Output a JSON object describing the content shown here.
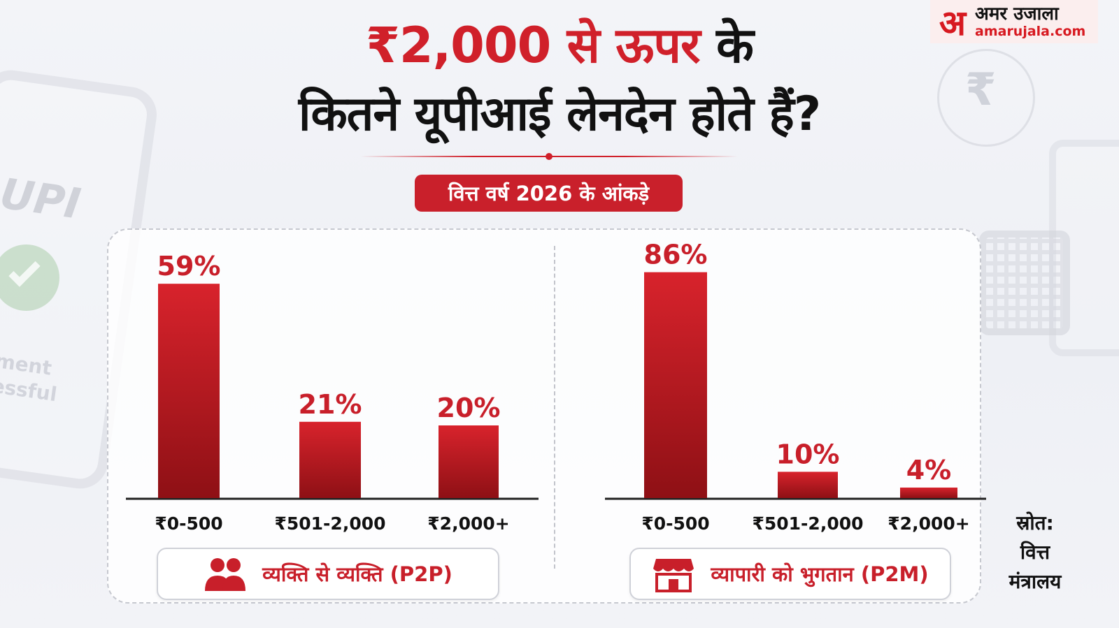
{
  "logo": {
    "mark": "अ",
    "name": "अमर उजाला",
    "url": "amarujala.com"
  },
  "background": {
    "upi_text": "UPI",
    "pay_text_1": "ment",
    "pay_text_2": "essful",
    "rupee": "₹"
  },
  "title": {
    "line1_red": "₹2,000 से ऊपर",
    "line1_black": "के",
    "line2": "कितने यूपीआई लेनदेन होते हैं?"
  },
  "pill_label": "वित्त वर्ष 2026 के आंकड़े",
  "colors": {
    "accent": "#d0202a",
    "bar_top": "#d8232c",
    "bar_bottom": "#8e1015"
  },
  "chart_data": [
    {
      "type": "bar",
      "title": "",
      "legend": "व्यक्ति से व्यक्ति (P2P)",
      "legend_icon": "people-icon",
      "categories": [
        "₹0-500",
        "₹501-2,000",
        "₹2,000+"
      ],
      "values": [
        59,
        21,
        20
      ],
      "value_labels": [
        "59%",
        "21%",
        "20%"
      ],
      "unit": "%",
      "ylim": [
        0,
        100
      ]
    },
    {
      "type": "bar",
      "title": "",
      "legend": "व्यापारी को भुगतान (P2M)",
      "legend_icon": "shop-icon",
      "categories": [
        "₹0-500",
        "₹501-2,000",
        "₹2,000+"
      ],
      "values": [
        86,
        10,
        4
      ],
      "value_labels": [
        "86%",
        "10%",
        "4%"
      ],
      "unit": "%",
      "ylim": [
        0,
        100
      ]
    }
  ],
  "source": {
    "label": "स्रोत:",
    "line1": "वित्त",
    "line2": "मंत्रालय"
  }
}
